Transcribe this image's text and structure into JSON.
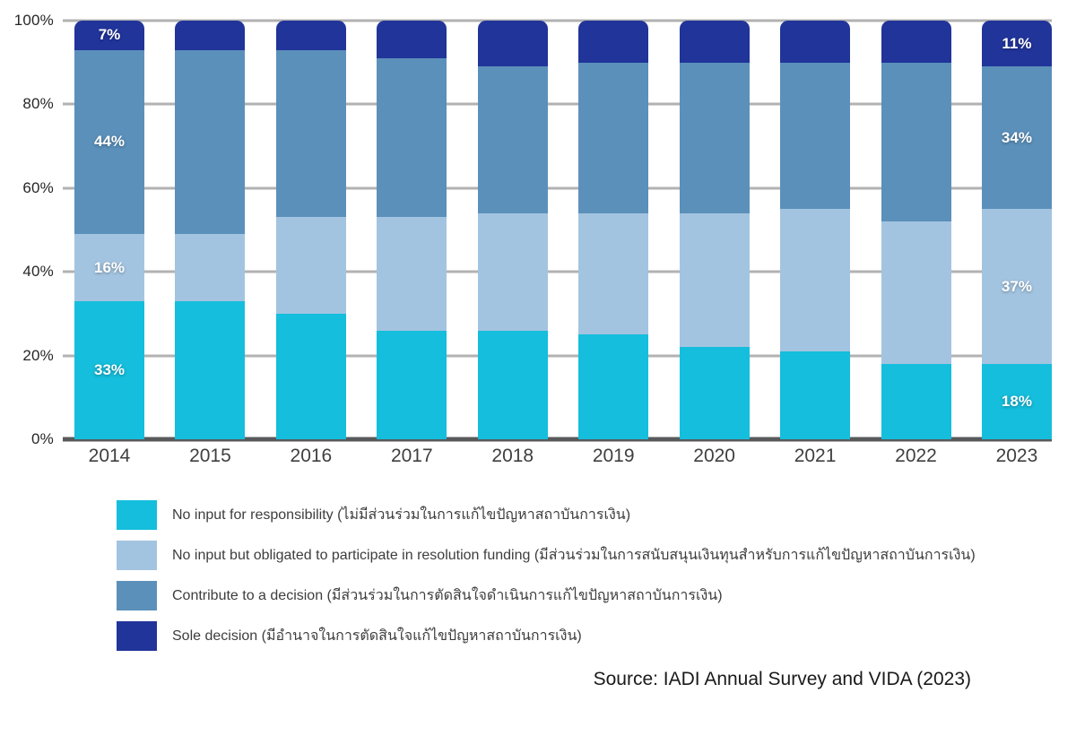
{
  "colors": {
    "no_input": "#14BEDC",
    "resolution_funding": "#A3C4E0",
    "contribute": "#5B90BA",
    "sole_decision": "#21349A",
    "gridline": "#B2B2B2",
    "axis_line": "#58595B",
    "segment_label_text": "#FFFFFF"
  },
  "y_axis": {
    "ticks": [
      {
        "label": "100%",
        "value": 100
      },
      {
        "label": "80%",
        "value": 80
      },
      {
        "label": "60%",
        "value": 60
      },
      {
        "label": "40%",
        "value": 40
      },
      {
        "label": "20%",
        "value": 20
      },
      {
        "label": "0%",
        "value": 0
      }
    ]
  },
  "chart_data": {
    "type": "bar",
    "subtype": "stacked-100-percent",
    "categories": [
      "2014",
      "2015",
      "2016",
      "2017",
      "2018",
      "2019",
      "2020",
      "2021",
      "2022",
      "2023"
    ],
    "series": [
      {
        "name": "No input for responsibility (ไม่มีส่วนร่วมในการแก้ไขปัญหาสถาบันการเงิน)",
        "color": "#14BEDC",
        "values": [
          33,
          33,
          30,
          26,
          26,
          25,
          22,
          21,
          18,
          18
        ]
      },
      {
        "name": "No input but obligated to participate in resolution funding (มีส่วนร่วมในการสนับสนุนเงินทุนสำหรับการแก้ไขปัญหาสถาบันการเงิน)",
        "color": "#A3C4E0",
        "values": [
          16,
          16,
          23,
          27,
          28,
          29,
          32,
          34,
          34,
          37
        ]
      },
      {
        "name": "Contribute to a decision (มีส่วนร่วมในการตัดสินใจดำเนินการแก้ไขปัญหาสถาบันการเงิน)",
        "color": "#5B90BA",
        "values": [
          44,
          44,
          40,
          38,
          35,
          36,
          36,
          35,
          38,
          34
        ]
      },
      {
        "name": "Sole decision (มีอำนาจในการตัดสินใจแก้ไขปัญหาสถาบันการเงิน)",
        "color": "#21349A",
        "values": [
          7,
          7,
          7,
          9,
          11,
          10,
          10,
          10,
          10,
          11
        ]
      }
    ],
    "labeled_categories": [
      "2014",
      "2023"
    ],
    "label_format": "{value}%",
    "ylim": [
      0,
      100
    ],
    "grid": true,
    "legend_position": "bottom-left"
  },
  "source": "Source: IADI Annual Survey and VIDA (2023)"
}
